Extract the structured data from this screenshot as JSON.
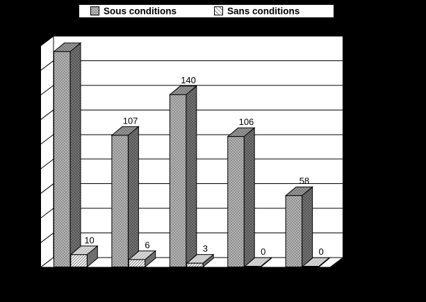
{
  "background_color": "#000000",
  "plot_color": "#ffffff",
  "outline_color": "#000000",
  "legend": {
    "items": [
      {
        "label": "Sous conditions",
        "swatch": "dotted-dark-gray"
      },
      {
        "label": "Sans conditions",
        "swatch": "hatched-light"
      }
    ]
  },
  "chart_data": {
    "type": "bar",
    "style": "3d-clustered-column",
    "title": "",
    "xlabel": "",
    "ylabel": "",
    "categories": [
      "",
      "",
      "",
      "",
      ""
    ],
    "series": [
      {
        "name": "Sous conditions",
        "pattern": "dots",
        "values": [
          175,
          107,
          140,
          106,
          58
        ],
        "data_labels": [
          "",
          "107",
          "140",
          "106",
          "58"
        ]
      },
      {
        "name": "Sans conditions",
        "pattern": "diagonal-hatch",
        "values": [
          10,
          6,
          3,
          0,
          0
        ],
        "data_labels": [
          "10",
          "6",
          "3",
          "0",
          "0"
        ]
      }
    ],
    "note": "first Sous-conditions bar has no visible data label; value estimated from gridlines",
    "ylim": [
      0,
      180
    ],
    "gridline_step": 20,
    "grid": true,
    "axis_tick_labels_visible": false,
    "legend_position": "top"
  },
  "colors": {
    "sous_front": "#8f8f8f",
    "sous_top": "#787878",
    "sous_side": "#555555",
    "sous_dot": "#d2d2d2",
    "sans_front": "#ffffff",
    "sans_top": "#bfbfbf",
    "sans_side": "#6f6f6f",
    "sans_hatch": "#6a6a6a"
  }
}
